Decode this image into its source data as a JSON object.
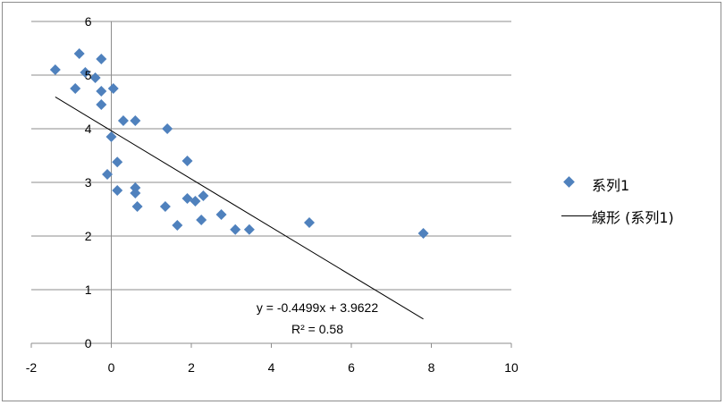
{
  "chart_data": {
    "type": "scatter",
    "xlim": [
      -2,
      10
    ],
    "ylim": [
      0,
      6
    ],
    "x_ticks": [
      "-2",
      "0",
      "2",
      "4",
      "6",
      "8",
      "10"
    ],
    "y_ticks": [
      "0",
      "1",
      "2",
      "3",
      "4",
      "5",
      "6"
    ],
    "grid": "horizontal",
    "marker_color": "#4f81bd",
    "trendline_color": "#000000",
    "legend_position": "right",
    "series": [
      {
        "name": "系列1",
        "points": [
          [
            -1.4,
            5.1
          ],
          [
            -0.8,
            5.4
          ],
          [
            -0.9,
            4.75
          ],
          [
            -0.65,
            5.05
          ],
          [
            -0.4,
            4.95
          ],
          [
            -0.25,
            5.3
          ],
          [
            -0.25,
            4.7
          ],
          [
            -0.25,
            4.45
          ],
          [
            0.05,
            4.75
          ],
          [
            0.3,
            4.15
          ],
          [
            0.6,
            4.15
          ],
          [
            1.4,
            4.0
          ],
          [
            0.0,
            3.85
          ],
          [
            0.15,
            3.38
          ],
          [
            -0.1,
            3.15
          ],
          [
            0.15,
            2.85
          ],
          [
            0.6,
            2.9
          ],
          [
            0.6,
            2.8
          ],
          [
            0.65,
            2.55
          ],
          [
            1.35,
            2.55
          ],
          [
            1.9,
            3.4
          ],
          [
            1.9,
            2.7
          ],
          [
            2.1,
            2.65
          ],
          [
            2.3,
            2.75
          ],
          [
            1.65,
            2.2
          ],
          [
            2.25,
            2.3
          ],
          [
            2.75,
            2.4
          ],
          [
            3.1,
            2.12
          ],
          [
            3.45,
            2.12
          ],
          [
            4.95,
            2.25
          ],
          [
            7.8,
            2.05
          ]
        ]
      }
    ],
    "trendline": {
      "name": "線形 (系列1)",
      "slope": -0.4499,
      "intercept": 3.9622,
      "x_range": [
        -1.4,
        7.8
      ]
    },
    "annotations": {
      "equation": "y = -0.4499x + 3.9622",
      "r_squared": "R² = 0.58"
    }
  }
}
